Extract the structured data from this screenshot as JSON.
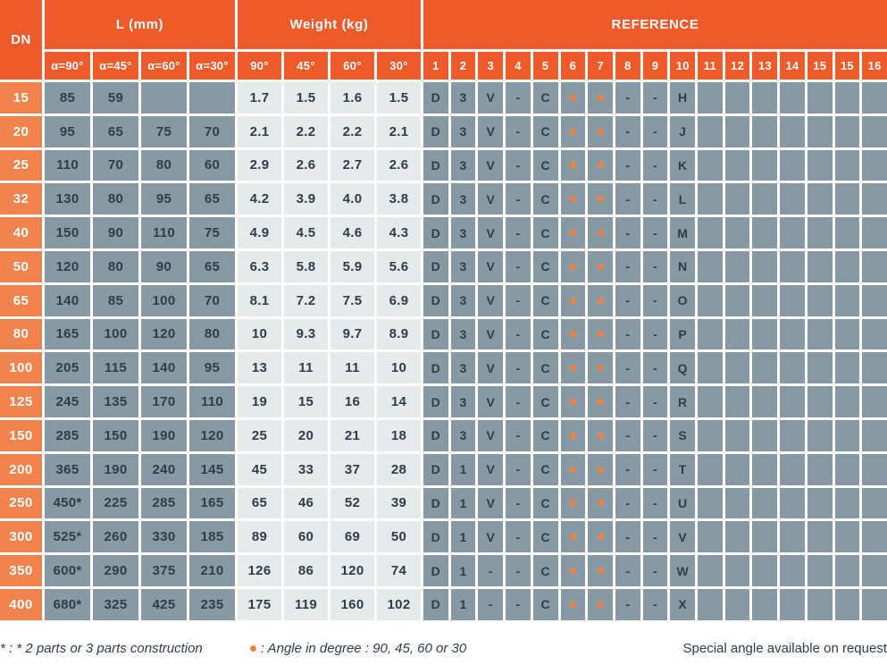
{
  "header": {
    "dn_label": "DN",
    "l_group": {
      "label": "L (mm)",
      "subs": [
        "α=90°",
        "α=45°",
        "α=60°",
        "α=30°"
      ]
    },
    "weight_group": {
      "label": "Weight (kg)",
      "subs": [
        "90°",
        "45°",
        "60°",
        "30°"
      ]
    },
    "reference_group": {
      "label": "REFERENCE",
      "subs": [
        "1",
        "2",
        "3",
        "4",
        "5",
        "6",
        "7",
        "8",
        "9",
        "10",
        "11",
        "12",
        "13",
        "14",
        "15",
        "15",
        "16"
      ]
    }
  },
  "rows": [
    {
      "dn": "15",
      "l": [
        "85",
        "59",
        "",
        ""
      ],
      "weight": [
        "1.7",
        "1.5",
        "1.6",
        "1.5"
      ],
      "reference": [
        "D",
        "3",
        "V",
        "-",
        "C",
        "•",
        "•",
        "-",
        "-",
        "H",
        "",
        "",
        "",
        "",
        "",
        "",
        ""
      ]
    },
    {
      "dn": "20",
      "l": [
        "95",
        "65",
        "75",
        "70"
      ],
      "weight": [
        "2.1",
        "2.2",
        "2.2",
        "2.1"
      ],
      "reference": [
        "D",
        "3",
        "V",
        "-",
        "C",
        "•",
        "•",
        "-",
        "-",
        "J",
        "",
        "",
        "",
        "",
        "",
        "",
        ""
      ]
    },
    {
      "dn": "25",
      "l": [
        "110",
        "70",
        "80",
        "60"
      ],
      "weight": [
        "2.9",
        "2.6",
        "2.7",
        "2.6"
      ],
      "reference": [
        "D",
        "3",
        "V",
        "-",
        "C",
        "•",
        "•",
        "-",
        "-",
        "K",
        "",
        "",
        "",
        "",
        "",
        "",
        ""
      ]
    },
    {
      "dn": "32",
      "l": [
        "130",
        "80",
        "95",
        "65"
      ],
      "weight": [
        "4.2",
        "3.9",
        "4.0",
        "3.8"
      ],
      "reference": [
        "D",
        "3",
        "V",
        "-",
        "C",
        "•",
        "•",
        "-",
        "-",
        "L",
        "",
        "",
        "",
        "",
        "",
        "",
        ""
      ]
    },
    {
      "dn": "40",
      "l": [
        "150",
        "90",
        "110",
        "75"
      ],
      "weight": [
        "4.9",
        "4.5",
        "4.6",
        "4.3"
      ],
      "reference": [
        "D",
        "3",
        "V",
        "-",
        "C",
        "•",
        "•",
        "-",
        "-",
        "M",
        "",
        "",
        "",
        "",
        "",
        "",
        ""
      ]
    },
    {
      "dn": "50",
      "l": [
        "120",
        "80",
        "90",
        "65"
      ],
      "weight": [
        "6.3",
        "5.8",
        "5.9",
        "5.6"
      ],
      "reference": [
        "D",
        "3",
        "V",
        "-",
        "C",
        "•",
        "•",
        "-",
        "-",
        "N",
        "",
        "",
        "",
        "",
        "",
        "",
        ""
      ]
    },
    {
      "dn": "65",
      "l": [
        "140",
        "85",
        "100",
        "70"
      ],
      "weight": [
        "8.1",
        "7.2",
        "7.5",
        "6.9"
      ],
      "reference": [
        "D",
        "3",
        "V",
        "-",
        "C",
        "•",
        "•",
        "-",
        "-",
        "O",
        "",
        "",
        "",
        "",
        "",
        "",
        ""
      ]
    },
    {
      "dn": "80",
      "l": [
        "165",
        "100",
        "120",
        "80"
      ],
      "weight": [
        "10",
        "9.3",
        "9.7",
        "8.9"
      ],
      "reference": [
        "D",
        "3",
        "V",
        "-",
        "C",
        "•",
        "•",
        "-",
        "-",
        "P",
        "",
        "",
        "",
        "",
        "",
        "",
        ""
      ]
    },
    {
      "dn": "100",
      "l": [
        "205",
        "115",
        "140",
        "95"
      ],
      "weight": [
        "13",
        "11",
        "11",
        "10"
      ],
      "reference": [
        "D",
        "3",
        "V",
        "-",
        "C",
        "•",
        "•",
        "-",
        "-",
        "Q",
        "",
        "",
        "",
        "",
        "",
        "",
        ""
      ]
    },
    {
      "dn": "125",
      "l": [
        "245",
        "135",
        "170",
        "110"
      ],
      "weight": [
        "19",
        "15",
        "16",
        "14"
      ],
      "reference": [
        "D",
        "3",
        "V",
        "-",
        "C",
        "•",
        "•",
        "-",
        "-",
        "R",
        "",
        "",
        "",
        "",
        "",
        "",
        ""
      ]
    },
    {
      "dn": "150",
      "l": [
        "285",
        "150",
        "190",
        "120"
      ],
      "weight": [
        "25",
        "20",
        "21",
        "18"
      ],
      "reference": [
        "D",
        "3",
        "V",
        "-",
        "C",
        "•",
        "•",
        "-",
        "-",
        "S",
        "",
        "",
        "",
        "",
        "",
        "",
        ""
      ]
    },
    {
      "dn": "200",
      "l": [
        "365",
        "190",
        "240",
        "145"
      ],
      "weight": [
        "45",
        "33",
        "37",
        "28"
      ],
      "reference": [
        "D",
        "1",
        "V",
        "-",
        "C",
        "•",
        "•",
        "-",
        "-",
        "T",
        "",
        "",
        "",
        "",
        "",
        "",
        ""
      ]
    },
    {
      "dn": "250",
      "l": [
        "450*",
        "225",
        "285",
        "165"
      ],
      "weight": [
        "65",
        "46",
        "52",
        "39"
      ],
      "reference": [
        "D",
        "1",
        "V",
        "-",
        "C",
        "•",
        "•",
        "-",
        "-",
        "U",
        "",
        "",
        "",
        "",
        "",
        "",
        ""
      ]
    },
    {
      "dn": "300",
      "l": [
        "525*",
        "260",
        "330",
        "185"
      ],
      "weight": [
        "89",
        "60",
        "69",
        "50"
      ],
      "reference": [
        "D",
        "1",
        "V",
        "-",
        "C",
        "•",
        "•",
        "-",
        "-",
        "V",
        "",
        "",
        "",
        "",
        "",
        "",
        ""
      ]
    },
    {
      "dn": "350",
      "l": [
        "600*",
        "290",
        "375",
        "210"
      ],
      "weight": [
        "126",
        "86",
        "120",
        "74"
      ],
      "reference": [
        "D",
        "1",
        "-",
        "-",
        "C",
        "•",
        "•",
        "-",
        "-",
        "W",
        "",
        "",
        "",
        "",
        "",
        "",
        ""
      ]
    },
    {
      "dn": "400",
      "l": [
        "680*",
        "325",
        "425",
        "235"
      ],
      "weight": [
        "175",
        "119",
        "160",
        "102"
      ],
      "reference": [
        "D",
        "1",
        "-",
        "-",
        "C",
        "•",
        "•",
        "-",
        "-",
        "X",
        "",
        "",
        "",
        "",
        "",
        "",
        ""
      ]
    }
  ],
  "footnotes": {
    "asterisk": "* : * 2 parts or 3 parts construction",
    "dot_note": ": Angle in degree : 90, 45, 60 or 30",
    "right_note": "Special angle available on request"
  },
  "colors": {
    "header_orange": "#EF5A2B",
    "dn_orange": "#F0834E",
    "cell_slate": "#879AA3",
    "cell_light": "#E7EAEB",
    "text_dark": "#2E3D4B",
    "dot_orange": "#F08040"
  }
}
